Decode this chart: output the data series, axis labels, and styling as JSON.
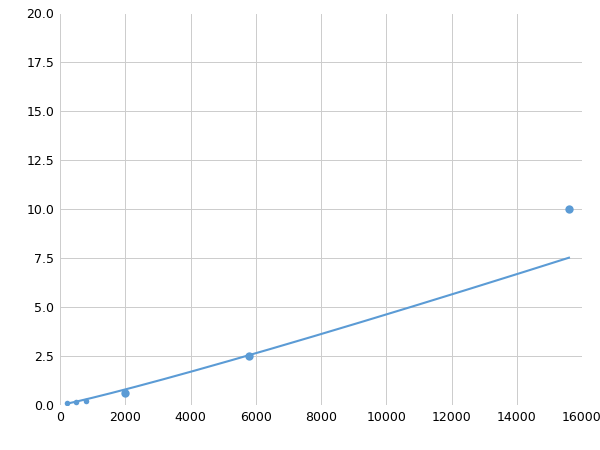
{
  "x": [
    200,
    500,
    800,
    2000,
    5800,
    15600
  ],
  "y": [
    0.1,
    0.15,
    0.22,
    0.6,
    2.5,
    10.0
  ],
  "line_color": "#5b9bd5",
  "marker_color": "#5b9bd5",
  "marker_sizes": [
    4,
    4,
    4,
    6,
    6,
    6
  ],
  "xlim": [
    0,
    16000
  ],
  "ylim": [
    0,
    20
  ],
  "xticks": [
    0,
    2000,
    4000,
    6000,
    8000,
    10000,
    12000,
    14000,
    16000
  ],
  "yticks": [
    0.0,
    2.5,
    5.0,
    7.5,
    10.0,
    12.5,
    15.0,
    17.5,
    20.0
  ],
  "grid": true,
  "background_color": "#ffffff",
  "fig_width": 6.0,
  "fig_height": 4.5,
  "dpi": 100
}
